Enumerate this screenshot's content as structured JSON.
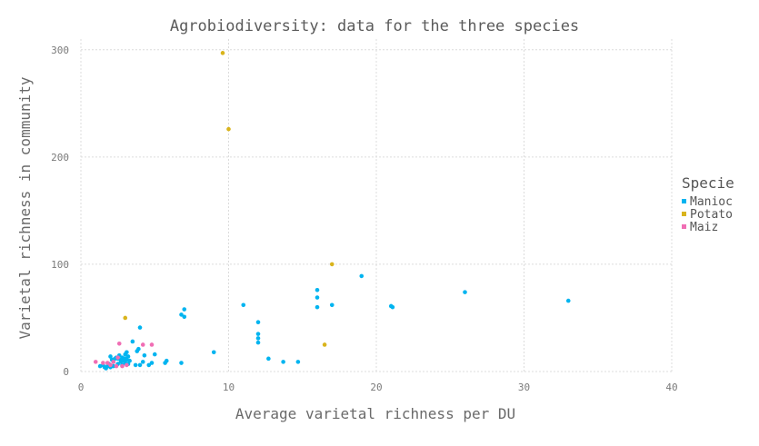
{
  "chart_data": {
    "type": "scatter",
    "title": "Agrobiodiversity: data for the three species",
    "xlabel": "Average varietal richness per DU",
    "ylabel": "Varietal richness in community",
    "xlim": [
      0,
      40
    ],
    "ylim": [
      0,
      310
    ],
    "xticks": [
      0,
      10,
      20,
      30,
      40
    ],
    "yticks": [
      0,
      100,
      200,
      300
    ],
    "grid": true,
    "legend": {
      "title": "Specie",
      "placement": "right"
    },
    "series": [
      {
        "name": "Manioc",
        "color": "#00b4f0",
        "points": [
          [
            1.3,
            5
          ],
          [
            1.5,
            6
          ],
          [
            1.6,
            4
          ],
          [
            1.7,
            3
          ],
          [
            1.8,
            5
          ],
          [
            1.9,
            7
          ],
          [
            2.0,
            14
          ],
          [
            2.0,
            4
          ],
          [
            2.1,
            11
          ],
          [
            2.2,
            5
          ],
          [
            2.2,
            9
          ],
          [
            2.3,
            12
          ],
          [
            2.4,
            13
          ],
          [
            2.5,
            12
          ],
          [
            2.5,
            7
          ],
          [
            2.6,
            15
          ],
          [
            2.7,
            9
          ],
          [
            2.7,
            11
          ],
          [
            2.8,
            13
          ],
          [
            2.8,
            6
          ],
          [
            2.9,
            10
          ],
          [
            3.0,
            16
          ],
          [
            3.0,
            12
          ],
          [
            3.0,
            8
          ],
          [
            3.1,
            18
          ],
          [
            3.1,
            11
          ],
          [
            3.2,
            14
          ],
          [
            3.2,
            7
          ],
          [
            3.3,
            10
          ],
          [
            3.5,
            28
          ],
          [
            3.7,
            6
          ],
          [
            3.8,
            19
          ],
          [
            3.9,
            21
          ],
          [
            4.0,
            6
          ],
          [
            4.0,
            41
          ],
          [
            4.2,
            9
          ],
          [
            4.3,
            15
          ],
          [
            4.6,
            6
          ],
          [
            4.8,
            8
          ],
          [
            5.0,
            16
          ],
          [
            5.7,
            8
          ],
          [
            5.8,
            10
          ],
          [
            6.8,
            8
          ],
          [
            6.8,
            53
          ],
          [
            7.0,
            58
          ],
          [
            7.0,
            51
          ],
          [
            9.0,
            18
          ],
          [
            11.0,
            62
          ],
          [
            12.0,
            46
          ],
          [
            12.0,
            35
          ],
          [
            12.0,
            31
          ],
          [
            12.0,
            27
          ],
          [
            12.7,
            12
          ],
          [
            13.7,
            9
          ],
          [
            14.7,
            9
          ],
          [
            16.0,
            76
          ],
          [
            16.0,
            69
          ],
          [
            16.0,
            60
          ],
          [
            17.0,
            62
          ],
          [
            19.0,
            89
          ],
          [
            21.0,
            61
          ],
          [
            21.1,
            60
          ],
          [
            26.0,
            74
          ],
          [
            33.0,
            66
          ]
        ]
      },
      {
        "name": "Potato",
        "color": "#d9b41c",
        "points": [
          [
            3.0,
            50
          ],
          [
            9.6,
            297
          ],
          [
            10.0,
            226
          ],
          [
            16.5,
            25
          ],
          [
            17.0,
            100
          ]
        ]
      },
      {
        "name": "Maiz",
        "color": "#f06eb4",
        "points": [
          [
            1.0,
            9
          ],
          [
            1.5,
            8
          ],
          [
            1.8,
            8
          ],
          [
            2.0,
            6
          ],
          [
            2.2,
            9
          ],
          [
            2.4,
            5
          ],
          [
            2.5,
            13
          ],
          [
            2.6,
            26
          ],
          [
            2.8,
            5
          ],
          [
            3.1,
            6
          ],
          [
            4.2,
            25
          ],
          [
            4.8,
            25
          ]
        ]
      }
    ]
  }
}
